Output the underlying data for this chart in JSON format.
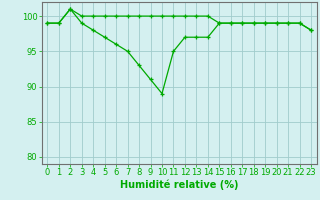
{
  "x": [
    0,
    1,
    2,
    3,
    4,
    5,
    6,
    7,
    8,
    9,
    10,
    11,
    12,
    13,
    14,
    15,
    16,
    17,
    18,
    19,
    20,
    21,
    22,
    23
  ],
  "line1": [
    99,
    99,
    101,
    99,
    98,
    97,
    96,
    95,
    93,
    91,
    89,
    95,
    97,
    97,
    97,
    99,
    99,
    99,
    99,
    99,
    99,
    99,
    99,
    98
  ],
  "line2": [
    99,
    99,
    101,
    100,
    100,
    100,
    100,
    100,
    100,
    100,
    100,
    100,
    100,
    100,
    100,
    99,
    99,
    99,
    99,
    99,
    99,
    99,
    99,
    98
  ],
  "line_color": "#00aa00",
  "bg_color": "#d4f0f0",
  "grid_color": "#a0cccc",
  "axis_color": "#707070",
  "xlabel": "Humidité relative (%)",
  "xlabel_color": "#00aa00",
  "xlabel_fontsize": 7,
  "tick_color": "#00aa00",
  "tick_fontsize": 6,
  "ylim": [
    79,
    102
  ],
  "yticks": [
    80,
    85,
    90,
    95,
    100
  ],
  "xticks": [
    0,
    1,
    2,
    3,
    4,
    5,
    6,
    7,
    8,
    9,
    10,
    11,
    12,
    13,
    14,
    15,
    16,
    17,
    18,
    19,
    20,
    21,
    22,
    23
  ]
}
